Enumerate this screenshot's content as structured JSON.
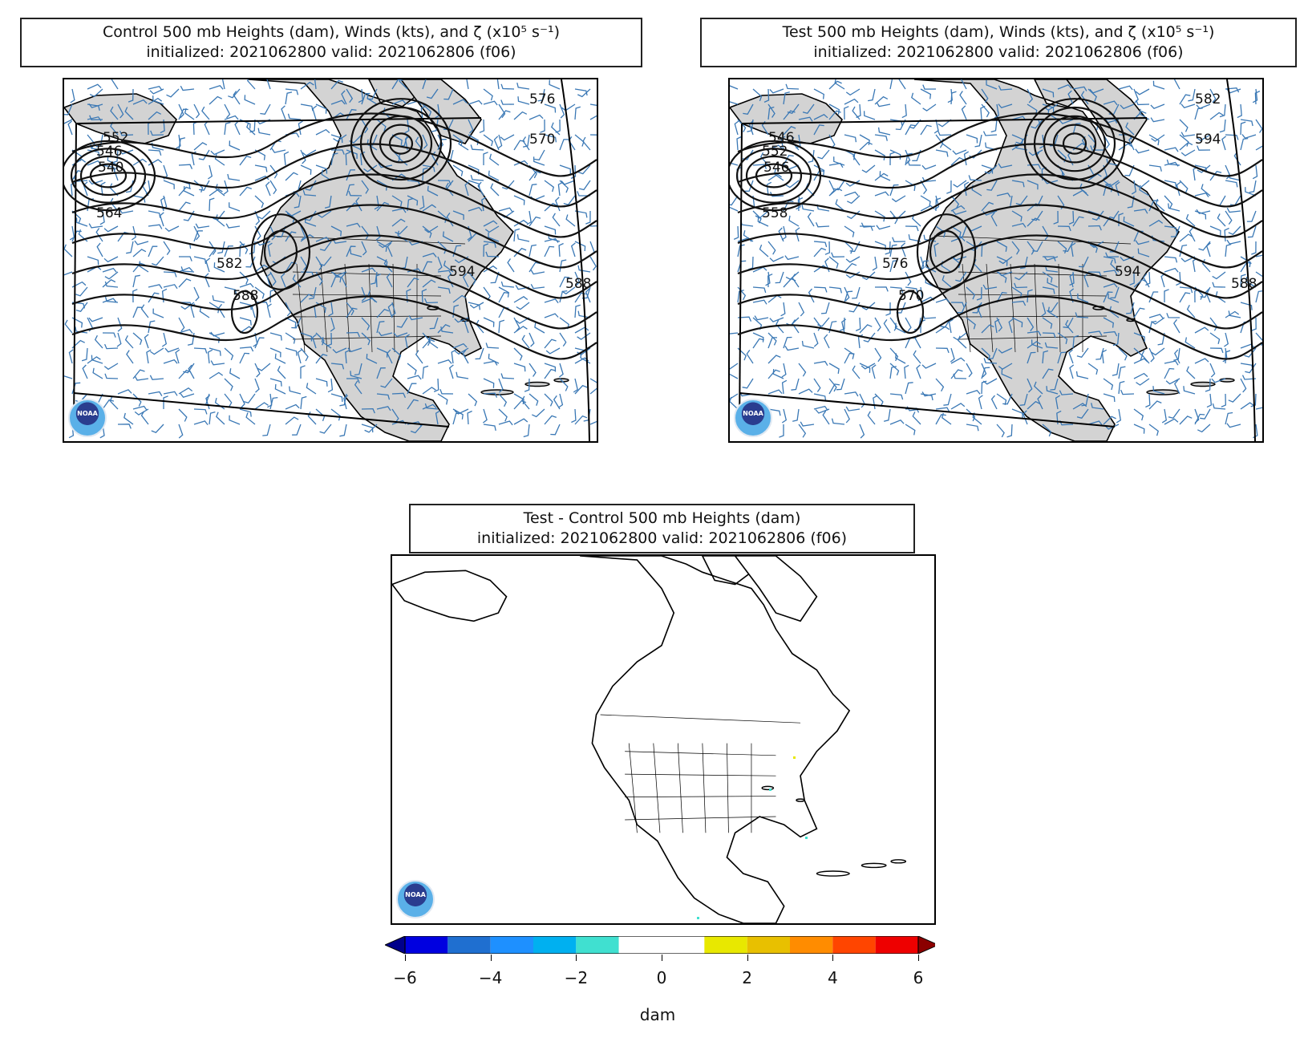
{
  "panels": {
    "control": {
      "title_line1": "Control 500 mb Heights (dam), Winds (kts), and ζ (x10⁵ s⁻¹)",
      "title_line2": "initialized: 2021062800 valid: 2021062806 (f06)",
      "contour_labels": [
        "552",
        "546",
        "540",
        "564",
        "582",
        "588",
        "576",
        "570",
        "594",
        "588"
      ]
    },
    "test": {
      "title_line1": "Test 500 mb Heights (dam), Winds (kts), and ζ (x10⁵ s⁻¹)",
      "title_line2": "initialized: 2021062800 valid: 2021062806 (f06)",
      "contour_labels": [
        "546",
        "552",
        "546",
        "558",
        "576",
        "570",
        "582",
        "594",
        "594",
        "588"
      ]
    },
    "difference": {
      "title_line1": "Test - Control 500 mb Heights (dam)",
      "title_line2": "initialized: 2021062800 valid: 2021062806 (f06)"
    }
  },
  "logo_text": "NOAA",
  "colorbar": {
    "unit": "dam",
    "ticks": [
      "−6",
      "−4",
      "−2",
      "0",
      "2",
      "4",
      "6"
    ],
    "colors": [
      "#0000e0",
      "#1f6fd0",
      "#1e90ff",
      "#00b0f0",
      "#40e0d0",
      "#ffffff",
      "#ffffff",
      "#e8e800",
      "#e8c000",
      "#ff8c00",
      "#ff4500",
      "#ee0000"
    ],
    "under_color": "#00008b",
    "over_color": "#8b0000"
  },
  "colors": {
    "land": "#d3d3d3",
    "wind_barbs": "#3a78b5",
    "contours": "#111111"
  }
}
